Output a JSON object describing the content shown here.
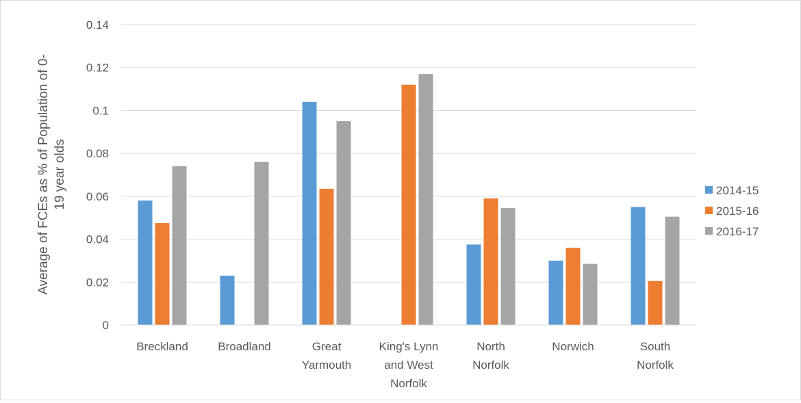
{
  "chart_data": {
    "type": "bar",
    "title": "",
    "xlabel": "",
    "ylabel": "Average of FCEs as % of Population of 0-19 year olds",
    "ylabel_lines": [
      "Average of FCEs as % of Population of 0-",
      "19 year olds"
    ],
    "ylim": [
      0,
      0.14
    ],
    "yticks": [
      0,
      0.02,
      0.04,
      0.06,
      0.08,
      0.1,
      0.12,
      0.14
    ],
    "ytick_labels": [
      "0",
      "0.02",
      "0.04",
      "0.06",
      "0.08",
      "0.1",
      "0.12",
      "0.14"
    ],
    "grid": true,
    "legend_position": "right",
    "categories": [
      "Breckland",
      "Broadland",
      "Great Yarmouth",
      "King's Lynn and West Norfolk",
      "North Norfolk",
      "Norwich",
      "South Norfolk"
    ],
    "category_label_lines": [
      [
        "Breckland"
      ],
      [
        "Broadland"
      ],
      [
        "Great",
        "Yarmouth"
      ],
      [
        "King's Lynn",
        "and West",
        "Norfolk"
      ],
      [
        "North",
        "Norfolk"
      ],
      [
        "Norwich"
      ],
      [
        "South",
        "Norfolk"
      ]
    ],
    "series": [
      {
        "name": "2014-15",
        "color": "#5b9bd5",
        "values": [
          0.058,
          0.023,
          0.104,
          null,
          0.0375,
          0.03,
          0.055
        ]
      },
      {
        "name": "2015-16",
        "color": "#ed7d31",
        "values": [
          0.0475,
          null,
          0.0635,
          0.112,
          0.059,
          0.036,
          0.0205
        ]
      },
      {
        "name": "2016-17",
        "color": "#a5a5a5",
        "values": [
          0.074,
          0.076,
          0.095,
          0.117,
          0.0545,
          0.0285,
          0.0505
        ]
      }
    ]
  }
}
